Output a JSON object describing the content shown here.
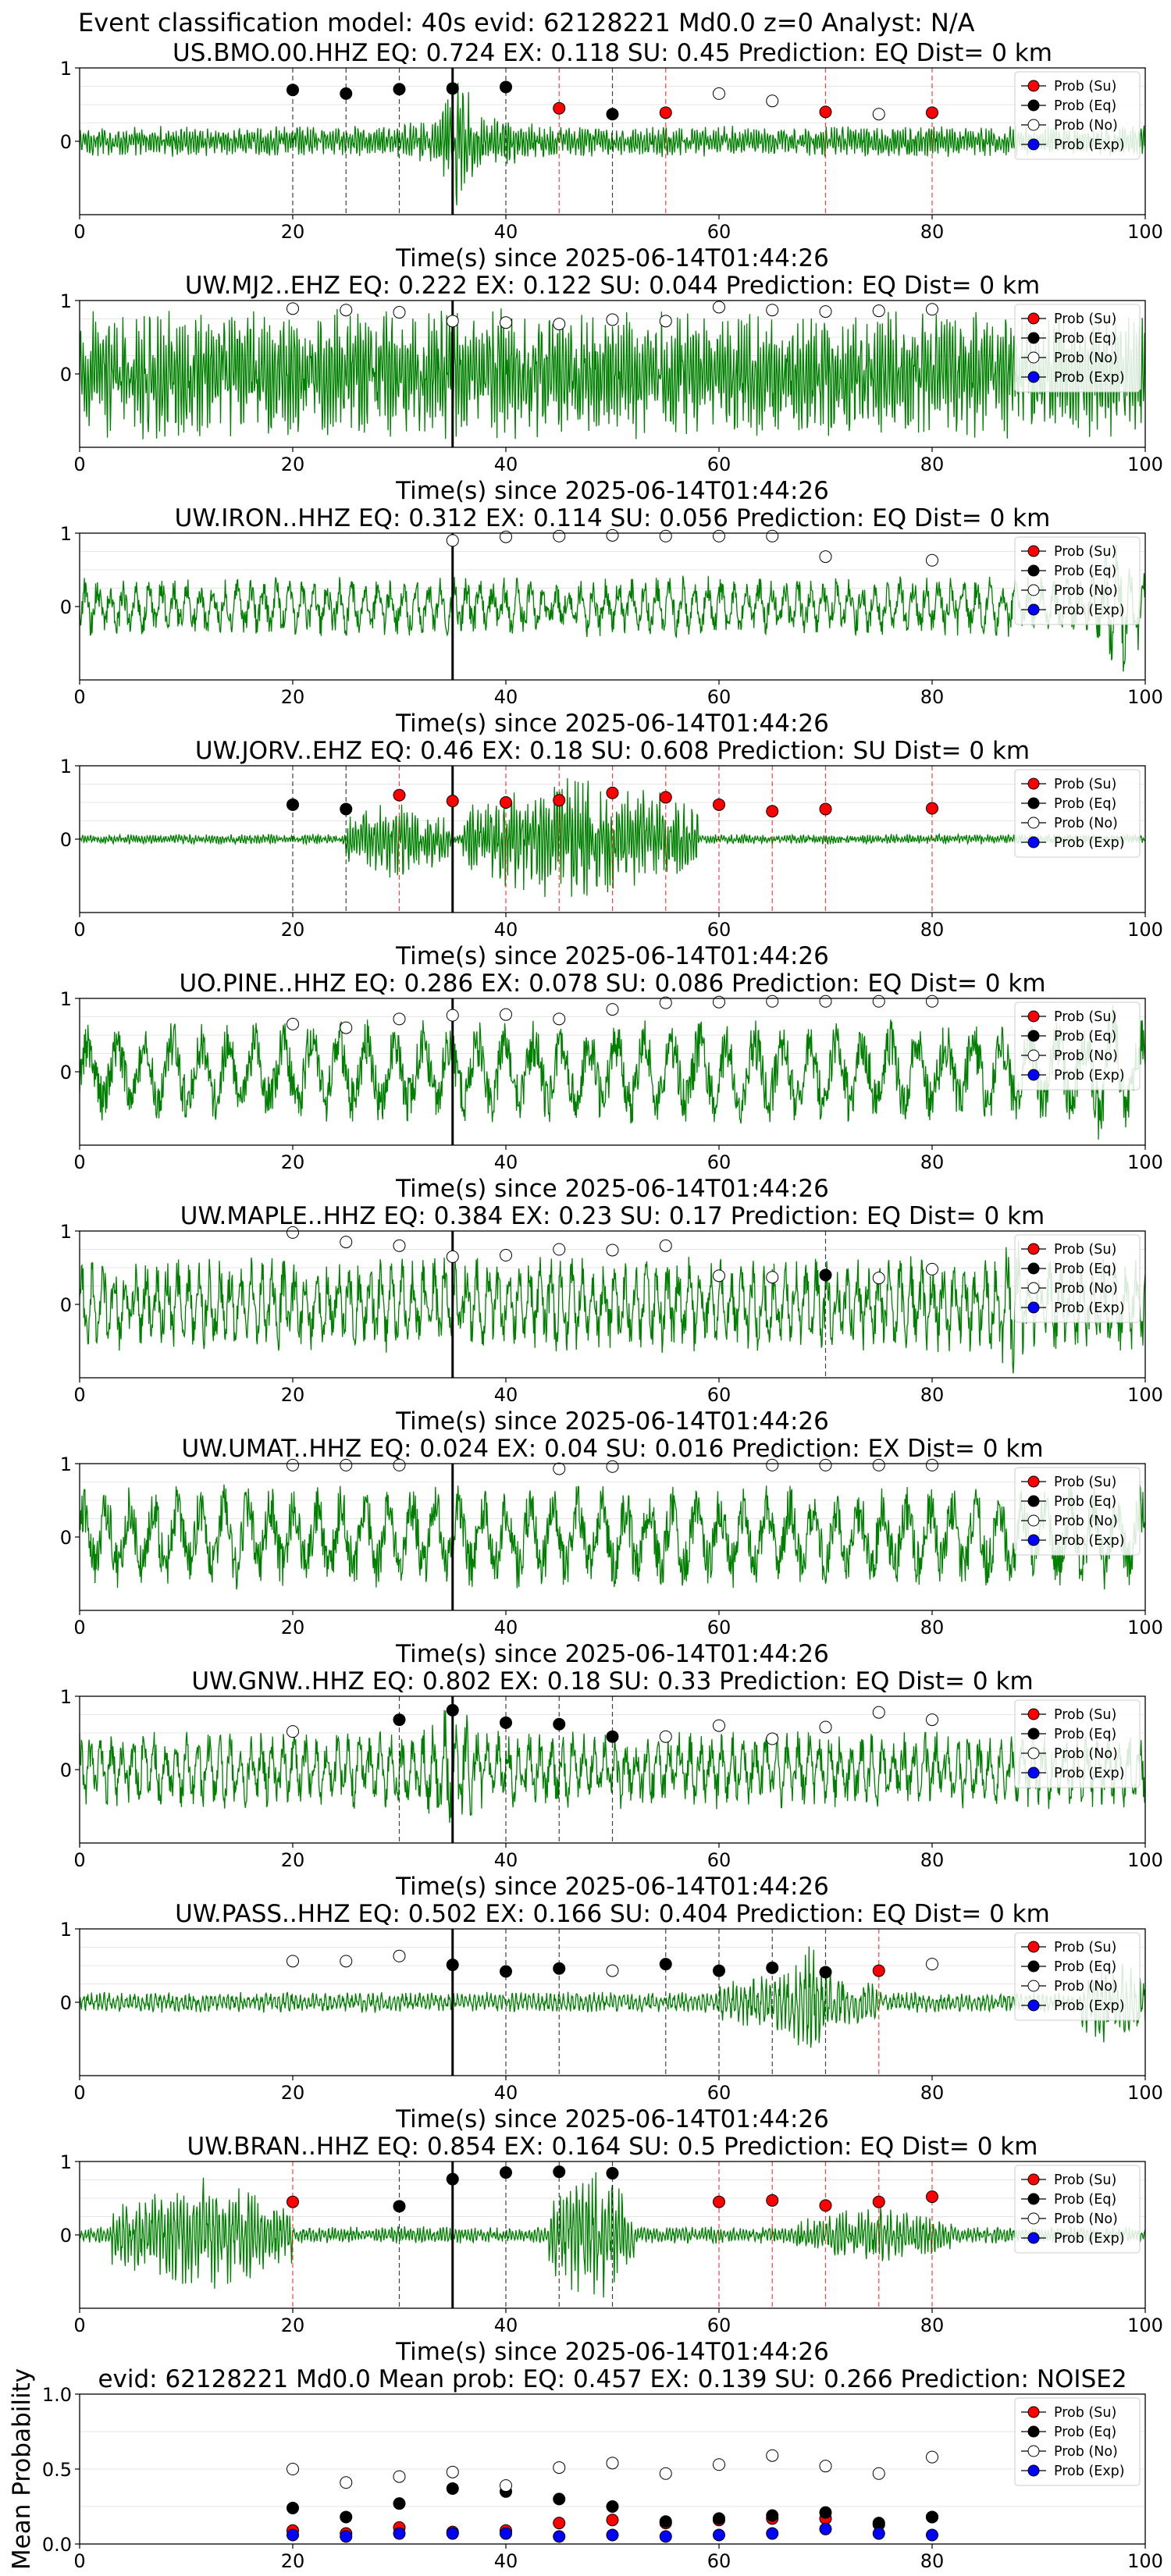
{
  "figure": {
    "suptitle": "Event classification model: 40s evid: 62128221 Md0.0 z=0 Analyst: N/A"
  },
  "legend_entries": [
    "Prob (Su)",
    "Prob (Eq)",
    "Prob (No)",
    "Prob (Exp)"
  ],
  "colors": {
    "waveform": "#008000",
    "su": "#ff0000",
    "eq": "#000000",
    "no": "#ffffff",
    "exp": "#0000ff",
    "su_line": "#ff0000",
    "eq_line": "#000000",
    "arrival_line": "#000000"
  },
  "chart_data": [
    {
      "type": "scatter",
      "title": "US.BMO.00.HHZ   EQ: 0.724   EX: 0.118   SU: 0.45   Prediction: EQ    Dist= 0 km",
      "xlabel": "Time(s) since 2025-06-14T01:44:26",
      "xlim": [
        0,
        100
      ],
      "ylim": [
        -1,
        1
      ],
      "xticks": [
        "0",
        "20",
        "40",
        "60",
        "80",
        "100"
      ],
      "yticks": [
        "1",
        "0"
      ],
      "arrival": 35,
      "waveform": {
        "amp": 0.18,
        "bursts": [
          [
            34,
            37,
            0.9
          ],
          [
            28,
            45,
            0.35
          ]
        ],
        "period": 0.25
      },
      "eq_lines": [
        20,
        25,
        30,
        35,
        40,
        50
      ],
      "su_lines": [
        45,
        55,
        70,
        80
      ],
      "series": [
        {
          "name": "Prob (Su)",
          "x": [
            45,
            55,
            70,
            80
          ],
          "y": [
            0.45,
            0.39,
            0.4,
            0.39
          ]
        },
        {
          "name": "Prob (Eq)",
          "x": [
            20,
            25,
            30,
            35,
            40,
            50
          ],
          "y": [
            0.7,
            0.65,
            0.71,
            0.72,
            0.74,
            0.37
          ]
        },
        {
          "name": "Prob (No)",
          "x": [
            60,
            65,
            75
          ],
          "y": [
            0.65,
            0.55,
            0.37
          ]
        },
        {
          "name": "Prob (Exp)",
          "x": [],
          "y": []
        }
      ]
    },
    {
      "type": "scatter",
      "title": "UW.MJ2..EHZ   EQ: 0.222   EX: 0.122   SU: 0.044   Prediction: EQ    Dist= 0 km",
      "xlabel": "Time(s) since 2025-06-14T01:44:26",
      "xlim": [
        0,
        100
      ],
      "ylim": [
        -1,
        1
      ],
      "xticks": [
        "0",
        "20",
        "40",
        "60",
        "80",
        "100"
      ],
      "yticks": [
        "1",
        "0"
      ],
      "arrival": 35,
      "waveform": {
        "amp": 0.75,
        "bursts": [],
        "period": 0.25
      },
      "eq_lines": [],
      "su_lines": [],
      "series": [
        {
          "name": "Prob (Su)",
          "x": [],
          "y": []
        },
        {
          "name": "Prob (Eq)",
          "x": [],
          "y": []
        },
        {
          "name": "Prob (No)",
          "x": [
            20,
            25,
            30,
            35,
            40,
            45,
            50,
            55,
            60,
            65,
            70,
            75,
            80
          ],
          "y": [
            0.89,
            0.87,
            0.84,
            0.72,
            0.7,
            0.68,
            0.74,
            0.72,
            0.91,
            0.87,
            0.85,
            0.86,
            0.88
          ]
        },
        {
          "name": "Prob (Exp)",
          "x": [],
          "y": []
        }
      ]
    },
    {
      "type": "scatter",
      "title": "UW.IRON..HHZ   EQ: 0.312   EX: 0.114   SU: 0.056   Prediction: EQ    Dist= 0 km",
      "xlabel": "Time(s) since 2025-06-14T01:44:26",
      "xlim": [
        0,
        100
      ],
      "ylim": [
        -1,
        1
      ],
      "xticks": [
        "0",
        "20",
        "40",
        "60",
        "80",
        "100"
      ],
      "yticks": [
        "1",
        "0"
      ],
      "arrival": 35,
      "waveform": {
        "amp": 0.35,
        "bursts": [
          [
            95,
            100,
            0.9
          ]
        ],
        "period": 1.2
      },
      "eq_lines": [],
      "su_lines": [],
      "series": [
        {
          "name": "Prob (Su)",
          "x": [],
          "y": []
        },
        {
          "name": "Prob (Eq)",
          "x": [],
          "y": []
        },
        {
          "name": "Prob (No)",
          "x": [
            35,
            40,
            45,
            50,
            55,
            60,
            65,
            70,
            80
          ],
          "y": [
            0.9,
            0.95,
            0.96,
            0.97,
            0.96,
            0.96,
            0.96,
            0.68,
            0.63
          ]
        },
        {
          "name": "Prob (Exp)",
          "x": [],
          "y": []
        }
      ]
    },
    {
      "type": "scatter",
      "title": "UW.JORV..EHZ   EQ: 0.46   EX: 0.18   SU: 0.608   Prediction: SU    Dist= 0 km",
      "xlabel": "Time(s) since 2025-06-14T01:44:26",
      "xlim": [
        0,
        100
      ],
      "ylim": [
        -1,
        1
      ],
      "xticks": [
        "0",
        "20",
        "40",
        "60",
        "80",
        "100"
      ],
      "yticks": [
        "1",
        "0"
      ],
      "arrival": 35,
      "waveform": {
        "amp": 0.06,
        "bursts": [
          [
            25,
            35,
            0.5
          ],
          [
            36,
            58,
            0.8
          ]
        ],
        "period": 0.25
      },
      "eq_lines": [
        20,
        25
      ],
      "su_lines": [
        30,
        40,
        45,
        50,
        55,
        60,
        65,
        70,
        80
      ],
      "series": [
        {
          "name": "Prob (Su)",
          "x": [
            30,
            35,
            40,
            45,
            50,
            55,
            60,
            65,
            70,
            80
          ],
          "y": [
            0.6,
            0.52,
            0.5,
            0.53,
            0.63,
            0.57,
            0.47,
            0.38,
            0.41,
            0.42
          ]
        },
        {
          "name": "Prob (Eq)",
          "x": [
            20,
            25
          ],
          "y": [
            0.47,
            0.41
          ]
        },
        {
          "name": "Prob (No)",
          "x": [],
          "y": []
        },
        {
          "name": "Prob (Exp)",
          "x": [],
          "y": []
        }
      ]
    },
    {
      "type": "scatter",
      "title": "UO.PINE..HHZ   EQ: 0.286   EX: 0.078   SU: 0.086   Prediction: EQ    Dist= 0 km",
      "xlabel": "Time(s) since 2025-06-14T01:44:26",
      "xlim": [
        0,
        100
      ],
      "ylim": [
        -1,
        1
      ],
      "xticks": [
        "0",
        "20",
        "40",
        "60",
        "80",
        "100"
      ],
      "yticks": [
        "1",
        "0"
      ],
      "arrival": 35,
      "waveform": {
        "amp": 0.6,
        "bursts": [
          [
            93,
            100,
            0.9
          ]
        ],
        "period": 2.6
      },
      "eq_lines": [],
      "su_lines": [],
      "series": [
        {
          "name": "Prob (Su)",
          "x": [],
          "y": []
        },
        {
          "name": "Prob (Eq)",
          "x": [],
          "y": []
        },
        {
          "name": "Prob (No)",
          "x": [
            20,
            25,
            30,
            35,
            40,
            45,
            50,
            55,
            60,
            65,
            70,
            75,
            80
          ],
          "y": [
            0.65,
            0.6,
            0.72,
            0.77,
            0.78,
            0.72,
            0.85,
            0.94,
            0.95,
            0.96,
            0.96,
            0.96,
            0.96
          ]
        },
        {
          "name": "Prob (Exp)",
          "x": [],
          "y": []
        }
      ]
    },
    {
      "type": "scatter",
      "title": "UW.MAPLE..HHZ   EQ: 0.384   EX: 0.23   SU: 0.17   Prediction: EQ    Dist= 0 km",
      "xlabel": "Time(s) since 2025-06-14T01:44:26",
      "xlim": [
        0,
        100
      ],
      "ylim": [
        -1,
        1
      ],
      "xticks": [
        "0",
        "20",
        "40",
        "60",
        "80",
        "100"
      ],
      "yticks": [
        "1",
        "0"
      ],
      "arrival": 35,
      "waveform": {
        "amp": 0.55,
        "bursts": [
          [
            85,
            90,
            0.85
          ]
        ],
        "period": 1.0
      },
      "eq_lines": [
        70
      ],
      "su_lines": [],
      "series": [
        {
          "name": "Prob (Su)",
          "x": [],
          "y": []
        },
        {
          "name": "Prob (Eq)",
          "x": [
            70
          ],
          "y": [
            0.4
          ]
        },
        {
          "name": "Prob (No)",
          "x": [
            20,
            25,
            30,
            35,
            40,
            45,
            50,
            55,
            60,
            65,
            75,
            80
          ],
          "y": [
            0.98,
            0.85,
            0.8,
            0.65,
            0.67,
            0.75,
            0.74,
            0.8,
            0.39,
            0.37,
            0.36,
            0.48
          ]
        },
        {
          "name": "Prob (Exp)",
          "x": [],
          "y": []
        }
      ]
    },
    {
      "type": "scatter",
      "title": "UW.UMAT..HHZ   EQ: 0.024   EX: 0.04   SU: 0.016   Prediction: EX    Dist= 0 km",
      "xlabel": "Time(s) since 2025-06-14T01:44:26",
      "xlim": [
        0,
        100
      ],
      "ylim": [
        -1,
        1
      ],
      "xticks": [
        "0",
        "20",
        "40",
        "60",
        "80",
        "100"
      ],
      "yticks": [
        "1",
        "0"
      ],
      "arrival": 35,
      "waveform": {
        "amp": 0.6,
        "bursts": [],
        "period": 2.2
      },
      "eq_lines": [],
      "su_lines": [],
      "series": [
        {
          "name": "Prob (Su)",
          "x": [],
          "y": []
        },
        {
          "name": "Prob (Eq)",
          "x": [],
          "y": []
        },
        {
          "name": "Prob (No)",
          "x": [
            20,
            25,
            30,
            45,
            50,
            65,
            70,
            75,
            80
          ],
          "y": [
            0.98,
            0.98,
            0.98,
            0.93,
            0.96,
            0.98,
            0.98,
            0.98,
            0.98
          ]
        },
        {
          "name": "Prob (Exp)",
          "x": [],
          "y": []
        }
      ]
    },
    {
      "type": "scatter",
      "title": "UW.GNW..HHZ   EQ: 0.802   EX: 0.18   SU: 0.33   Prediction: EQ    Dist= 0 km",
      "xlabel": "Time(s) since 2025-06-14T01:44:26",
      "xlim": [
        0,
        100
      ],
      "ylim": [
        -1,
        1
      ],
      "xticks": [
        "0",
        "20",
        "40",
        "60",
        "80",
        "100"
      ],
      "yticks": [
        "1",
        "0"
      ],
      "arrival": 35,
      "waveform": {
        "amp": 0.45,
        "bursts": [
          [
            32,
            38,
            0.9
          ]
        ],
        "period": 1.0
      },
      "eq_lines": [
        30,
        35,
        40,
        45,
        50
      ],
      "su_lines": [],
      "series": [
        {
          "name": "Prob (Su)",
          "x": [],
          "y": []
        },
        {
          "name": "Prob (Eq)",
          "x": [
            30,
            35,
            40,
            45,
            50
          ],
          "y": [
            0.68,
            0.81,
            0.64,
            0.62,
            0.45
          ]
        },
        {
          "name": "Prob (No)",
          "x": [
            20,
            55,
            60,
            65,
            70,
            75,
            80
          ],
          "y": [
            0.52,
            0.45,
            0.6,
            0.42,
            0.58,
            0.78,
            0.68
          ]
        },
        {
          "name": "Prob (Exp)",
          "x": [],
          "y": []
        }
      ]
    },
    {
      "type": "scatter",
      "title": "UW.PASS..HHZ   EQ: 0.502   EX: 0.166   SU: 0.404   Prediction: EQ    Dist= 0 km",
      "xlabel": "Time(s) since 2025-06-14T01:44:26",
      "xlim": [
        0,
        100
      ],
      "ylim": [
        -1,
        1
      ],
      "xticks": [
        "0",
        "20",
        "40",
        "60",
        "80",
        "100"
      ],
      "yticks": [
        "1",
        "0"
      ],
      "arrival": 35,
      "waveform": {
        "amp": 0.12,
        "bursts": [
          [
            60,
            75,
            0.45
          ],
          [
            67,
            70,
            0.8
          ],
          [
            94,
            100,
            0.6
          ]
        ],
        "period": 0.4
      },
      "eq_lines": [
        40,
        45,
        55,
        60,
        65,
        70
      ],
      "su_lines": [
        75
      ],
      "series": [
        {
          "name": "Prob (Su)",
          "x": [
            75
          ],
          "y": [
            0.43
          ]
        },
        {
          "name": "Prob (Eq)",
          "x": [
            35,
            40,
            45,
            55,
            60,
            65,
            70
          ],
          "y": [
            0.51,
            0.42,
            0.46,
            0.52,
            0.43,
            0.47,
            0.41
          ]
        },
        {
          "name": "Prob (No)",
          "x": [
            20,
            25,
            30,
            50,
            80
          ],
          "y": [
            0.56,
            0.56,
            0.63,
            0.43,
            0.52
          ]
        },
        {
          "name": "Prob (Exp)",
          "x": [],
          "y": []
        }
      ]
    },
    {
      "type": "scatter",
      "title": "UW.BRAN..HHZ   EQ: 0.854   EX: 0.164   SU: 0.5   Prediction: EQ    Dist= 0 km",
      "xlabel": "Time(s) since 2025-06-14T01:44:26",
      "xlim": [
        0,
        100
      ],
      "ylim": [
        -1,
        1
      ],
      "xticks": [
        "0",
        "20",
        "40",
        "60",
        "80",
        "100"
      ],
      "yticks": [
        "1",
        "0"
      ],
      "arrival": 35,
      "waveform": {
        "amp": 0.1,
        "bursts": [
          [
            3,
            20,
            0.7
          ],
          [
            44,
            52,
            0.85
          ],
          [
            67,
            82,
            0.35
          ]
        ],
        "period": 0.3
      },
      "eq_lines": [
        30,
        35,
        40,
        45,
        50
      ],
      "su_lines": [
        20,
        60,
        65,
        70,
        75,
        80
      ],
      "series": [
        {
          "name": "Prob (Su)",
          "x": [
            20,
            60,
            65,
            70,
            75,
            80
          ],
          "y": [
            0.45,
            0.45,
            0.47,
            0.4,
            0.45,
            0.52
          ]
        },
        {
          "name": "Prob (Eq)",
          "x": [
            30,
            35,
            40,
            45,
            50
          ],
          "y": [
            0.39,
            0.76,
            0.85,
            0.86,
            0.84
          ]
        },
        {
          "name": "Prob (No)",
          "x": [],
          "y": []
        },
        {
          "name": "Prob (Exp)",
          "x": [],
          "y": []
        }
      ]
    },
    {
      "type": "scatter",
      "title": "evid: 62128221  Md0.0   Mean prob:   EQ: 0.457  EX: 0.139  SU: 0.266   Prediction: NOISE2",
      "xlabel": "",
      "ylabel": "Mean Probability",
      "xlim": [
        0,
        100
      ],
      "ylim": [
        0,
        1
      ],
      "xticks": [
        "0",
        "20",
        "40",
        "60",
        "80",
        "100"
      ],
      "yticks": [
        "1.0",
        "0.5",
        "0.0"
      ],
      "series": [
        {
          "name": "Prob (Su)",
          "x": [
            20,
            25,
            30,
            35,
            40,
            45,
            50,
            55,
            60,
            65,
            70,
            75,
            80
          ],
          "y": [
            0.09,
            0.07,
            0.11,
            0.08,
            0.09,
            0.14,
            0.16,
            0.14,
            0.16,
            0.17,
            0.17,
            0.13,
            0.18
          ]
        },
        {
          "name": "Prob (Eq)",
          "x": [
            20,
            25,
            30,
            35,
            40,
            45,
            50,
            55,
            60,
            65,
            70,
            75,
            80
          ],
          "y": [
            0.24,
            0.18,
            0.27,
            0.37,
            0.35,
            0.3,
            0.25,
            0.15,
            0.17,
            0.19,
            0.21,
            0.14,
            0.18
          ]
        },
        {
          "name": "Prob (No)",
          "x": [
            20,
            25,
            30,
            35,
            40,
            45,
            50,
            55,
            60,
            65,
            70,
            75,
            80
          ],
          "y": [
            0.5,
            0.41,
            0.45,
            0.48,
            0.39,
            0.51,
            0.54,
            0.47,
            0.53,
            0.59,
            0.52,
            0.47,
            0.58
          ]
        },
        {
          "name": "Prob (Exp)",
          "x": [
            20,
            25,
            30,
            35,
            40,
            45,
            50,
            55,
            60,
            65,
            70,
            75,
            80
          ],
          "y": [
            0.06,
            0.05,
            0.07,
            0.07,
            0.07,
            0.05,
            0.06,
            0.05,
            0.06,
            0.07,
            0.1,
            0.07,
            0.06
          ]
        }
      ]
    }
  ]
}
